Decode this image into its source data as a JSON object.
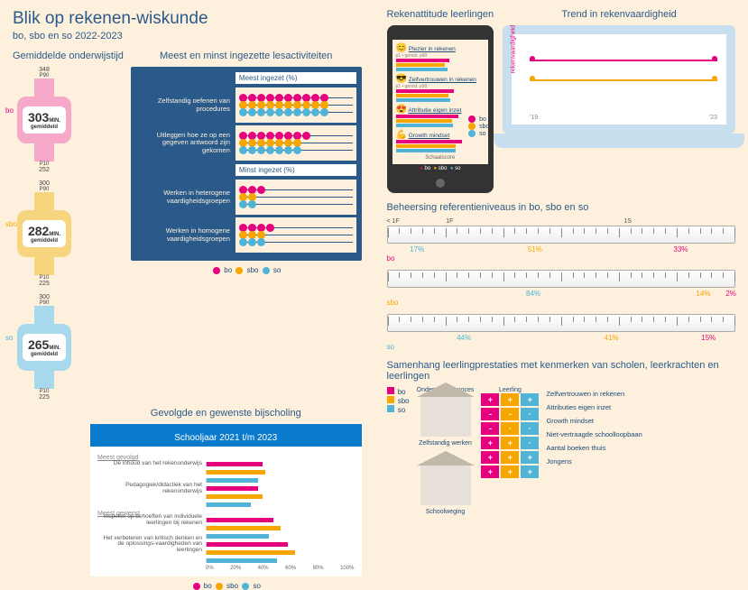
{
  "title": "Blik op rekenen-wiskunde",
  "subtitle": "bo, sbo en so 2022-2023",
  "colors": {
    "bo": "#e6007e",
    "sbo": "#f7a600",
    "so": "#4fb4d8",
    "navy": "#1a4a7a",
    "cream": "#fdf0dc"
  },
  "left": {
    "watches_title": "Gemiddelde onderwijstijd",
    "watches": [
      {
        "key": "bo",
        "color": "#f5a8c8",
        "minutes": 303,
        "p90": 348,
        "p10": 252
      },
      {
        "key": "sbo",
        "color": "#f7d57e",
        "minutes": 282,
        "p90": 300,
        "p10": 225
      },
      {
        "key": "so",
        "color": "#a8d8ec",
        "minutes": 265,
        "p90": 300,
        "p10": 225
      }
    ],
    "abacus_title": "Meest en minst ingezette lesactiviteiten",
    "abacus_top_header": "Meest ingezet (%)",
    "abacus_bot_header": "Minst ingezet (%)",
    "abacus_most": [
      {
        "label": "Zelfstandig oefenen van procedures",
        "bo": 10,
        "sbo": 10,
        "so": 10
      },
      {
        "label": "Uitleggen hoe ze op een gegeven antwoord zijn gekomen",
        "bo": 8,
        "sbo": 7,
        "so": 7
      }
    ],
    "abacus_least": [
      {
        "label": "Werken in heterogene vaardigheidsgroepen",
        "bo": 3,
        "sbo": 2,
        "so": 2
      },
      {
        "label": "Werken in homogene vaardigheidsgroepen",
        "bo": 4,
        "sbo": 3,
        "so": 3
      }
    ],
    "training_title": "Gevolgde en gewenste bijscholing",
    "training_header": "Schooljaar 2021 t/m 2023",
    "training_most_label": "Meest gevolgd",
    "training_want_label": "Meest gewenst",
    "training_groups": [
      {
        "label": "De inhoud van het rekenonderwijs",
        "bo": 38,
        "sbo": 40,
        "so": 35
      },
      {
        "label": "Pedagogiek/didactiek van het rekenonderwijs",
        "bo": 35,
        "sbo": 38,
        "so": 30
      },
      {
        "label": "Inspelen op behoeften van individuele leerlingen bij rekenen",
        "bo": 45,
        "sbo": 50,
        "so": 42
      },
      {
        "label": "Het verbeteren van kritisch denken en de oplossings-vaardigheden van leerlingen",
        "bo": 55,
        "sbo": 60,
        "so": 48
      }
    ],
    "training_xaxis": [
      "0%",
      "20%",
      "40%",
      "60%",
      "80%",
      "100%"
    ]
  },
  "right": {
    "tablet_title": "Rekenattitude leerlingen",
    "tablet_legend": "● bo  ● sbo  ● so",
    "tablet_items": [
      {
        "label": "Plezier in rekenen",
        "sub": "p1    • gemid.   p90"
      },
      {
        "label": "Zelfvertrouwen in rekenen",
        "sub": "p1  • gemid.  p90"
      },
      {
        "label": "Attributie eigen inzet",
        "sub": ""
      },
      {
        "label": "Growth mindset",
        "sub": ""
      }
    ],
    "laptop_title": "Trend in rekenvaardigheid",
    "laptop_ylabel": "rekenvaardigheid",
    "laptop_xaxis": [
      "'19",
      "'23"
    ],
    "laptop_series": [
      "bo",
      "sbo",
      "so"
    ],
    "rulers_title": "Beheersing referentieniveaus in bo, sbo en so",
    "rulers_head": [
      "< 1F",
      "1F",
      "1S"
    ],
    "rulers": [
      {
        "key": "bo",
        "segments": [
          {
            "pct": 17,
            "color": "#4fb4d8"
          },
          {
            "pct": 51,
            "color": "#f7a600"
          },
          {
            "pct": 33,
            "color": "#e6007e"
          }
        ]
      },
      {
        "key": "sbo",
        "segments": [
          {
            "pct": 84,
            "color": "#4fb4d8"
          },
          {
            "pct": 14,
            "color": "#f7a600"
          },
          {
            "pct": 2,
            "color": "#e6007e"
          }
        ]
      },
      {
        "key": "so",
        "segments": [
          {
            "pct": 44,
            "color": "#4fb4d8"
          },
          {
            "pct": 41,
            "color": "#f7a600"
          },
          {
            "pct": 15,
            "color": "#e6007e"
          }
        ]
      }
    ],
    "correl_title": "Samenhang leerlingprestaties met kenmerken van scholen, leerkrachten en leerlingen",
    "correl_legend": [
      "bo",
      "sbo",
      "so"
    ],
    "house1": "Onderwijsleerproces",
    "house1_sub": "Zelfstandig werken",
    "house2": "School",
    "house2_sub": "Schoolweging",
    "building_label": "Leerling",
    "features": [
      "Zelfvertrouwen in rekenen",
      "Attributies eigen inzet",
      "Growth mindset",
      "Niet-vertraagde schoolloopbaan",
      "Aantal boeken thuis",
      "Jongens"
    ],
    "building_signs": [
      [
        "+",
        "+",
        "+"
      ],
      [
        "-",
        "-",
        "·"
      ],
      [
        "-",
        "·",
        "·"
      ],
      [
        "+",
        "+",
        "·"
      ],
      [
        "+",
        "+",
        "+"
      ],
      [
        "+",
        "+",
        "+"
      ]
    ]
  }
}
